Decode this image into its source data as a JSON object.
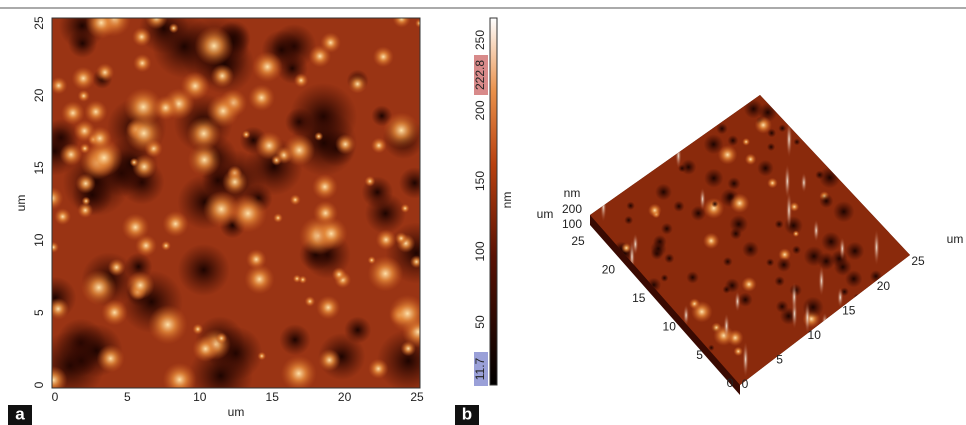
{
  "panels": [
    {
      "label": "a",
      "x_axis": {
        "label": "um",
        "ticks": [
          "0",
          "5",
          "10",
          "15",
          "20",
          "25"
        ]
      },
      "y_axis": {
        "label": "um",
        "ticks": [
          "0",
          "5",
          "10",
          "15",
          "20",
          "25"
        ]
      },
      "colorbar": {
        "label": "nm",
        "ticks": [
          "50",
          "100",
          "150",
          "200",
          "250"
        ],
        "max_marker": "222.8",
        "min_marker": "11.7"
      }
    },
    {
      "label": "b",
      "z_axis": {
        "label": "nm",
        "ticks": [
          "100",
          "200"
        ]
      },
      "y_axis": {
        "label": "um",
        "ticks": [
          "0",
          "5",
          "10",
          "15",
          "20",
          "25"
        ]
      },
      "x_axis": {
        "label": "um",
        "ticks": [
          "0",
          "5",
          "10",
          "15",
          "20",
          "25"
        ]
      }
    }
  ]
}
